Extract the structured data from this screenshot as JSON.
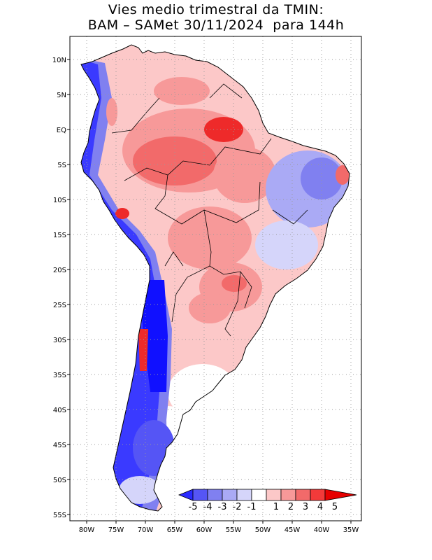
{
  "title": {
    "line1": "Vies medio trimestral da TMIN:",
    "line2": "BAM – SAMet 30/11/2024  para 144h"
  },
  "axes": {
    "lon_labels": [
      "80W",
      "75W",
      "70W",
      "65W",
      "60W",
      "55W",
      "50W",
      "45W",
      "40W",
      "35W"
    ],
    "lat_labels": [
      "10N",
      "5N",
      "EQ",
      "5S",
      "10S",
      "15S",
      "20S",
      "25S",
      "30S",
      "35S",
      "40S",
      "45S",
      "50S",
      "55S"
    ]
  },
  "colorbar": {
    "labels": [
      "-5",
      "-4",
      "-3",
      "-2",
      "-1",
      "1",
      "2",
      "3",
      "4",
      "5"
    ],
    "colors": [
      "#2a2aff",
      "#5555f5",
      "#8080f0",
      "#aaaaf5",
      "#d5d5fa",
      "#ffffff",
      "#fcc8c8",
      "#f79999",
      "#f26a6a",
      "#f23a3a",
      "#e60000"
    ]
  },
  "colors": {
    "frame": "#000000",
    "grid": "#999999",
    "warm_light": "#fcc8c8",
    "warm_mid": "#f79999",
    "warm_strong": "#f26a6a",
    "warm_max": "#ee2a2a",
    "cold_light": "#d5d5fa",
    "cold_mid": "#8080f0",
    "cold_strong": "#3a3aff",
    "cold_max": "#1010ff"
  }
}
